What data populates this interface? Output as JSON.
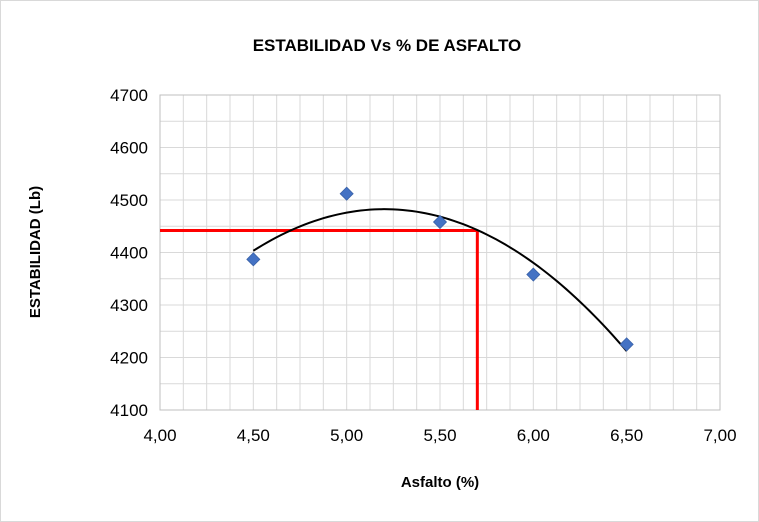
{
  "chart_data": {
    "type": "scatter",
    "title": "ESTABILIDAD Vs % DE ASFALTO",
    "xlabel": "Asfalto (%)",
    "ylabel": "ESTABILIDAD (Lb)",
    "xlim": [
      4.0,
      7.0
    ],
    "ylim": [
      4100,
      4700
    ],
    "x_ticks": [
      "4,00",
      "4,50",
      "5,00",
      "5,50",
      "6,00",
      "6,50",
      "7,00"
    ],
    "y_ticks": [
      "4100",
      "4200",
      "4300",
      "4400",
      "4500",
      "4600",
      "4700"
    ],
    "grid": true,
    "legend": "none",
    "series": [
      {
        "points": [
          {
            "x": 4.5,
            "y": 4387
          },
          {
            "x": 5.0,
            "y": 4512
          },
          {
            "x": 5.5,
            "y": 4458
          },
          {
            "x": 6.0,
            "y": 4358
          },
          {
            "x": 6.5,
            "y": 4225
          }
        ],
        "marker": "diamond",
        "color": "#4472C4"
      }
    ],
    "trendline": {
      "type": "polynomial",
      "order": 2,
      "x_range": [
        4.5,
        6.5
      ],
      "color": "#000000"
    },
    "reference_lines": {
      "color": "#FF0000",
      "x": 5.7,
      "y": 4442
    }
  }
}
